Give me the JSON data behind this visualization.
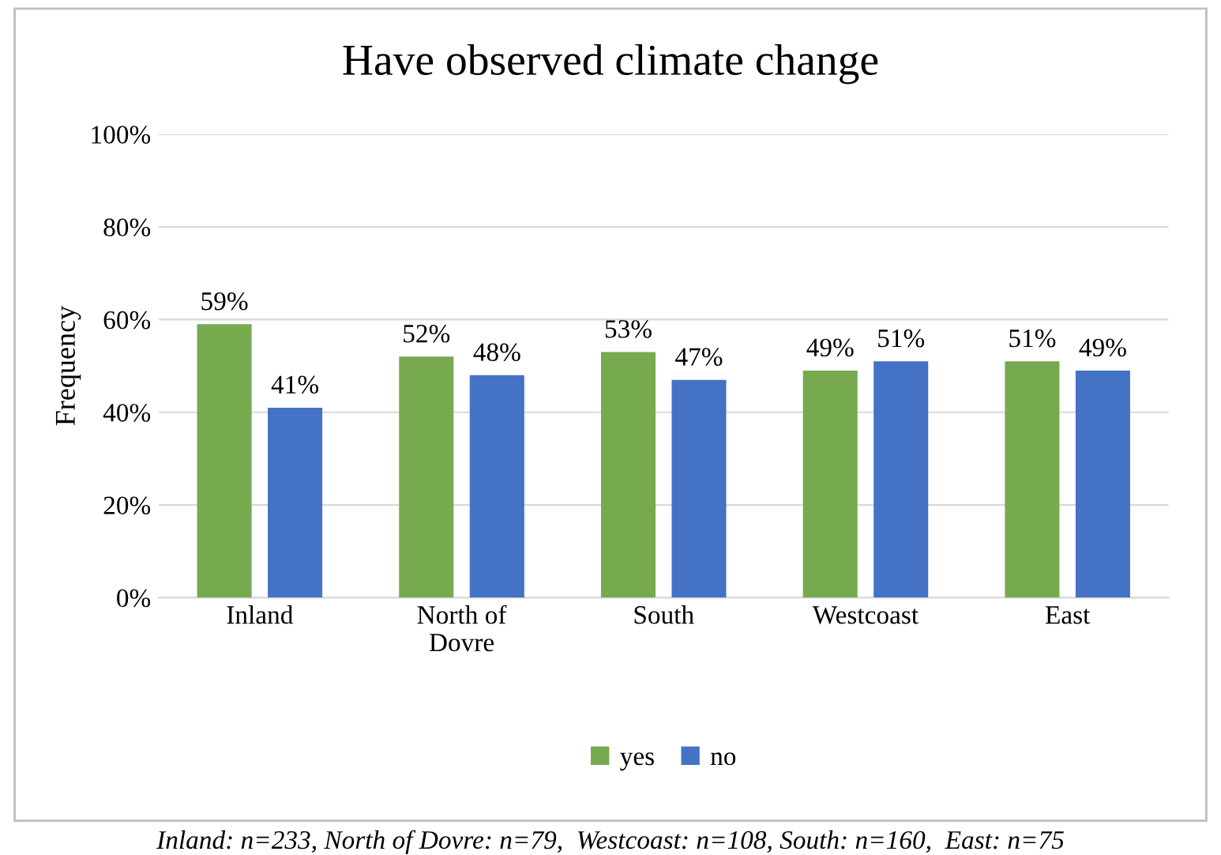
{
  "chart_data": {
    "type": "bar",
    "title": "Have observed climate change",
    "ylabel": "Frequency",
    "categories": [
      "Inland",
      "North of\nDovre",
      "South",
      "Westcoast",
      "East"
    ],
    "series": [
      {
        "name": "yes",
        "color": "#77a94f",
        "values": [
          59,
          52,
          53,
          49,
          51
        ]
      },
      {
        "name": "no",
        "color": "#4472c4",
        "values": [
          41,
          48,
          47,
          51,
          49
        ]
      }
    ],
    "ylim": [
      0,
      100
    ],
    "yticks": [
      {
        "value": 0,
        "label": "0%"
      },
      {
        "value": 20,
        "label": "20%"
      },
      {
        "value": 40,
        "label": "40%"
      },
      {
        "value": 60,
        "label": "60%"
      },
      {
        "value": 80,
        "label": "80%"
      },
      {
        "value": 100,
        "label": "100%"
      }
    ],
    "grid": "y",
    "legend": "bottom",
    "value_labels": [
      [
        "59%",
        "52%",
        "53%",
        "49%",
        "51%"
      ],
      [
        "41%",
        "48%",
        "47%",
        "51%",
        "49%"
      ]
    ],
    "annotations": [
      "Inland: n=233, North of Dovre: n=79,  Westcoast: n=108, South: n=160,  East: n=75"
    ]
  }
}
